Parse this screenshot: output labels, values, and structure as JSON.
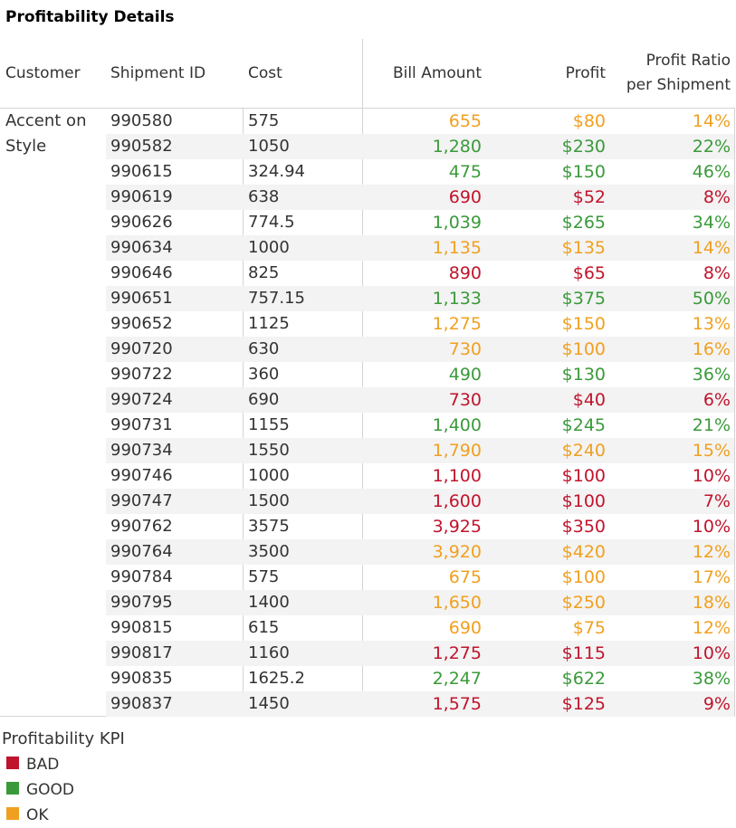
{
  "title": "Profitability Details",
  "headers": {
    "customer": "Customer",
    "shipment_id": "Shipment ID",
    "cost": "Cost",
    "bill_amount": "Bill Amount",
    "profit": "Profit",
    "ratio_line1": "Profit Ratio",
    "ratio_line2": "per Shipment"
  },
  "customer_name": "Accent on Style",
  "kpi_colors": {
    "BAD": "#c0142c",
    "GOOD": "#3a9a3a",
    "OK": "#f0a020"
  },
  "legend": {
    "title": "Profitability KPI",
    "items": [
      {
        "label": "BAD",
        "color": "#c0142c"
      },
      {
        "label": "GOOD",
        "color": "#3a9a3a"
      },
      {
        "label": "OK",
        "color": "#f0a020"
      }
    ]
  },
  "chart_data": {
    "type": "table",
    "title": "Profitability Details",
    "columns": [
      "Customer",
      "Shipment ID",
      "Cost",
      "Bill Amount",
      "Profit",
      "Profit Ratio per Shipment"
    ],
    "rows": [
      {
        "shipment_id": "990580",
        "cost": "575",
        "bill": "655",
        "profit": "$80",
        "ratio": "14%",
        "kpi": "OK"
      },
      {
        "shipment_id": "990582",
        "cost": "1050",
        "bill": "1,280",
        "profit": "$230",
        "ratio": "22%",
        "kpi": "GOOD"
      },
      {
        "shipment_id": "990615",
        "cost": "324.94",
        "bill": "475",
        "profit": "$150",
        "ratio": "46%",
        "kpi": "GOOD"
      },
      {
        "shipment_id": "990619",
        "cost": "638",
        "bill": "690",
        "profit": "$52",
        "ratio": "8%",
        "kpi": "BAD"
      },
      {
        "shipment_id": "990626",
        "cost": "774.5",
        "bill": "1,039",
        "profit": "$265",
        "ratio": "34%",
        "kpi": "GOOD"
      },
      {
        "shipment_id": "990634",
        "cost": "1000",
        "bill": "1,135",
        "profit": "$135",
        "ratio": "14%",
        "kpi": "OK"
      },
      {
        "shipment_id": "990646",
        "cost": "825",
        "bill": "890",
        "profit": "$65",
        "ratio": "8%",
        "kpi": "BAD"
      },
      {
        "shipment_id": "990651",
        "cost": "757.15",
        "bill": "1,133",
        "profit": "$375",
        "ratio": "50%",
        "kpi": "GOOD"
      },
      {
        "shipment_id": "990652",
        "cost": "1125",
        "bill": "1,275",
        "profit": "$150",
        "ratio": "13%",
        "kpi": "OK"
      },
      {
        "shipment_id": "990720",
        "cost": "630",
        "bill": "730",
        "profit": "$100",
        "ratio": "16%",
        "kpi": "OK"
      },
      {
        "shipment_id": "990722",
        "cost": "360",
        "bill": "490",
        "profit": "$130",
        "ratio": "36%",
        "kpi": "GOOD"
      },
      {
        "shipment_id": "990724",
        "cost": "690",
        "bill": "730",
        "profit": "$40",
        "ratio": "6%",
        "kpi": "BAD"
      },
      {
        "shipment_id": "990731",
        "cost": "1155",
        "bill": "1,400",
        "profit": "$245",
        "ratio": "21%",
        "kpi": "GOOD"
      },
      {
        "shipment_id": "990734",
        "cost": "1550",
        "bill": "1,790",
        "profit": "$240",
        "ratio": "15%",
        "kpi": "OK"
      },
      {
        "shipment_id": "990746",
        "cost": "1000",
        "bill": "1,100",
        "profit": "$100",
        "ratio": "10%",
        "kpi": "BAD"
      },
      {
        "shipment_id": "990747",
        "cost": "1500",
        "bill": "1,600",
        "profit": "$100",
        "ratio": "7%",
        "kpi": "BAD"
      },
      {
        "shipment_id": "990762",
        "cost": "3575",
        "bill": "3,925",
        "profit": "$350",
        "ratio": "10%",
        "kpi": "BAD"
      },
      {
        "shipment_id": "990764",
        "cost": "3500",
        "bill": "3,920",
        "profit": "$420",
        "ratio": "12%",
        "kpi": "OK"
      },
      {
        "shipment_id": "990784",
        "cost": "575",
        "bill": "675",
        "profit": "$100",
        "ratio": "17%",
        "kpi": "OK"
      },
      {
        "shipment_id": "990795",
        "cost": "1400",
        "bill": "1,650",
        "profit": "$250",
        "ratio": "18%",
        "kpi": "OK"
      },
      {
        "shipment_id": "990815",
        "cost": "615",
        "bill": "690",
        "profit": "$75",
        "ratio": "12%",
        "kpi": "OK"
      },
      {
        "shipment_id": "990817",
        "cost": "1160",
        "bill": "1,275",
        "profit": "$115",
        "ratio": "10%",
        "kpi": "BAD"
      },
      {
        "shipment_id": "990835",
        "cost": "1625.2",
        "bill": "2,247",
        "profit": "$622",
        "ratio": "38%",
        "kpi": "GOOD"
      },
      {
        "shipment_id": "990837",
        "cost": "1450",
        "bill": "1,575",
        "profit": "$125",
        "ratio": "9%",
        "kpi": "BAD"
      }
    ]
  }
}
